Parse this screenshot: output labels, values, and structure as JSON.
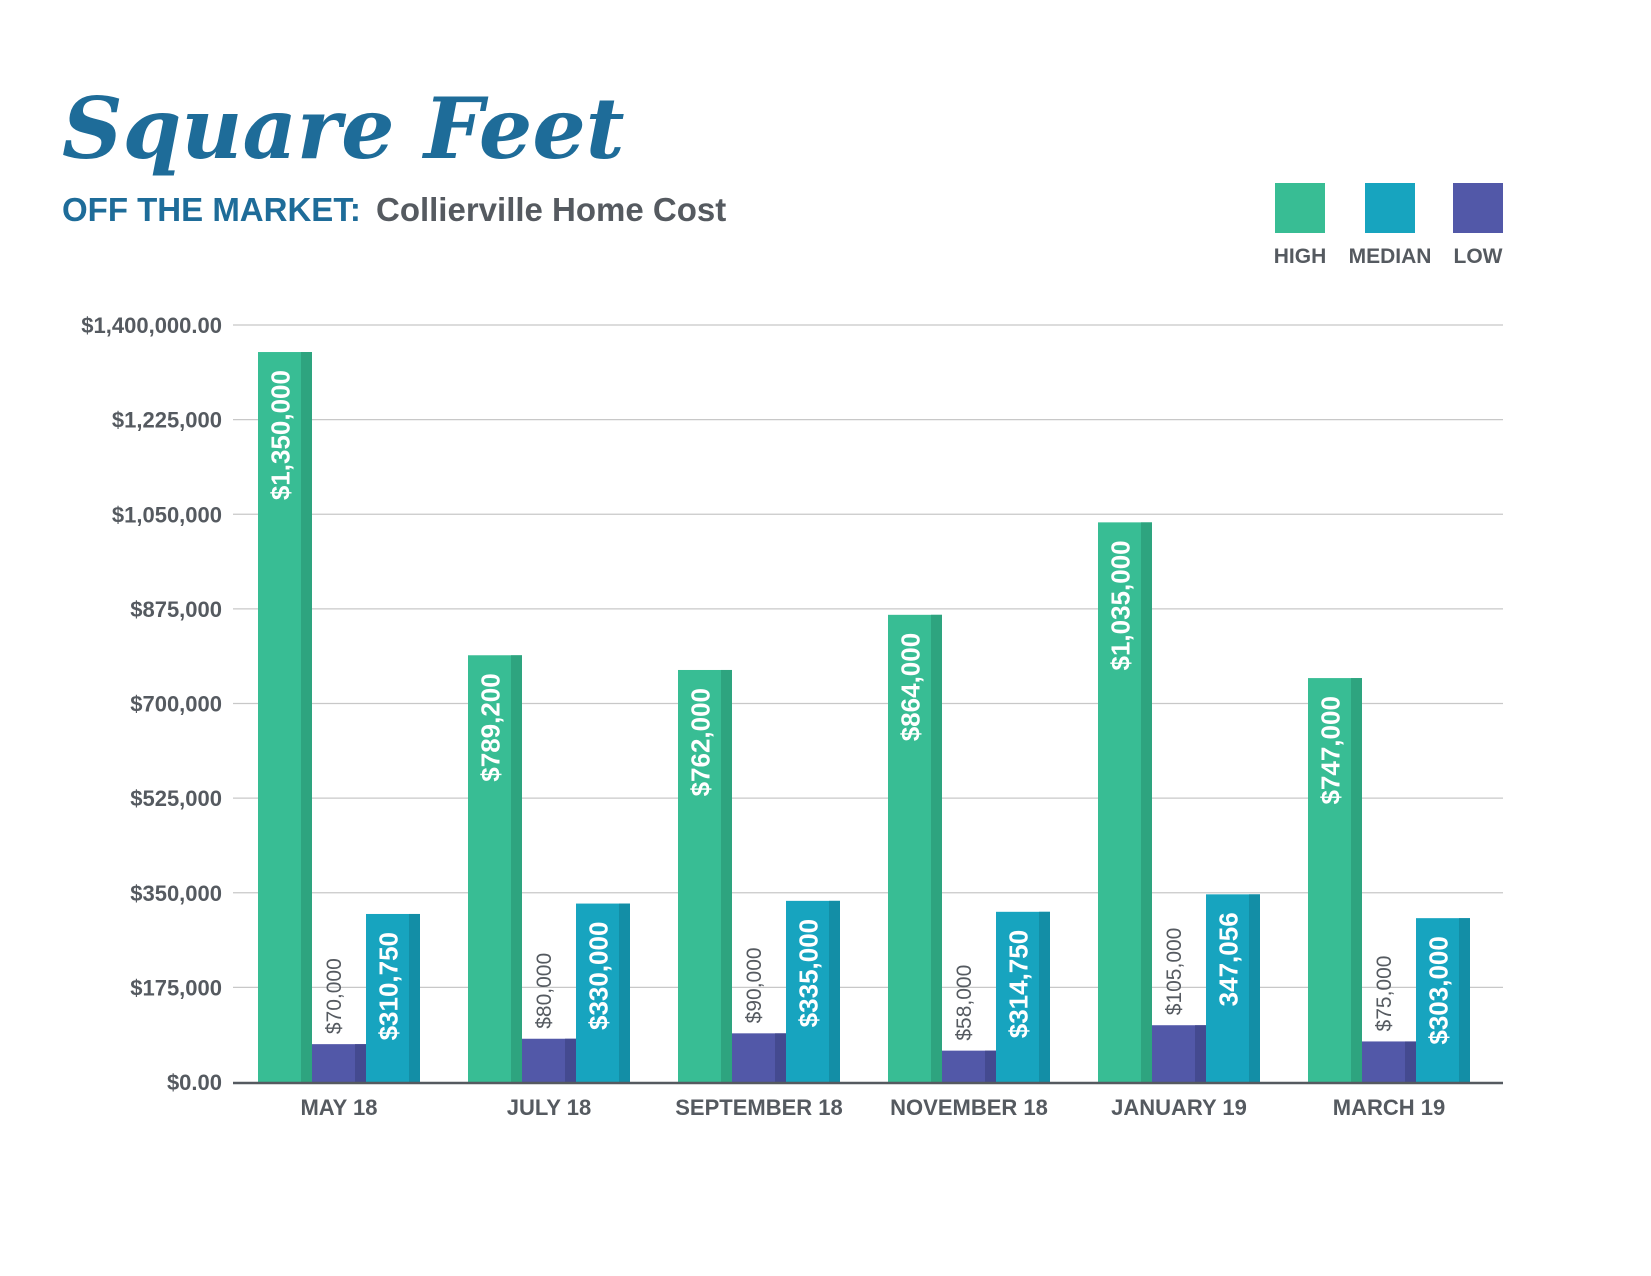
{
  "brand": {
    "text": "Square Feet",
    "color": "#1e6c99"
  },
  "subtitle": {
    "prefix": "OFF THE MARKET:",
    "suffix": "Collierville Home Cost",
    "prefix_color": "#1e6c99",
    "suffix_color": "#555a60"
  },
  "colors": {
    "high": "#38bd94",
    "high_side": "#2ea47f",
    "median": "#17a4bf",
    "median_side": "#138ea6",
    "low": "#5258a8",
    "low_side": "#444a90",
    "grid": "#c8c8c8",
    "axis": "#555a60",
    "text": "#555a60"
  },
  "chart_data": {
    "type": "bar",
    "title": "Square Feet",
    "subtitle": "OFF THE MARKET: Collierville Home Cost",
    "categories": [
      "MAY 18",
      "JULY 18",
      "SEPTEMBER 18",
      "NOVEMBER 18",
      "JANUARY 19",
      "MARCH 19"
    ],
    "series": [
      {
        "name": "HIGH",
        "values": [
          1350000,
          789200,
          762000,
          864000,
          1035000,
          747000
        ],
        "labels": [
          "$1,350,000",
          "$789,200",
          "$762,000",
          "$864,000",
          "$1,035,000",
          "$747,000"
        ]
      },
      {
        "name": "LOW",
        "values": [
          70000,
          80000,
          90000,
          58000,
          105000,
          75000
        ],
        "labels": [
          "$70,000",
          "$80,000",
          "$90,000",
          "$58,000",
          "$105,000",
          "$75,000"
        ]
      },
      {
        "name": "MEDIAN",
        "values": [
          310750,
          330000,
          335000,
          314750,
          347056,
          303000
        ],
        "labels": [
          "$310,750",
          "$330,000",
          "$335,000",
          "$314,750",
          "347,056",
          "$303,000"
        ]
      }
    ],
    "legend": {
      "order": [
        "HIGH",
        "MEDIAN",
        "LOW"
      ],
      "placement": "top-right"
    },
    "yticks": [
      0,
      175000,
      350000,
      525000,
      700000,
      875000,
      1050000,
      1225000,
      1400000
    ],
    "ytick_labels": [
      "$0.00",
      "$175,000",
      "$350,000",
      "$525,000",
      "$700,000",
      "$875,000",
      "$1,050,000",
      "$1,225,000",
      "$1,400,000.00"
    ],
    "ylim": [
      0,
      1400000
    ],
    "grid": true,
    "xlabel": "",
    "ylabel": ""
  }
}
